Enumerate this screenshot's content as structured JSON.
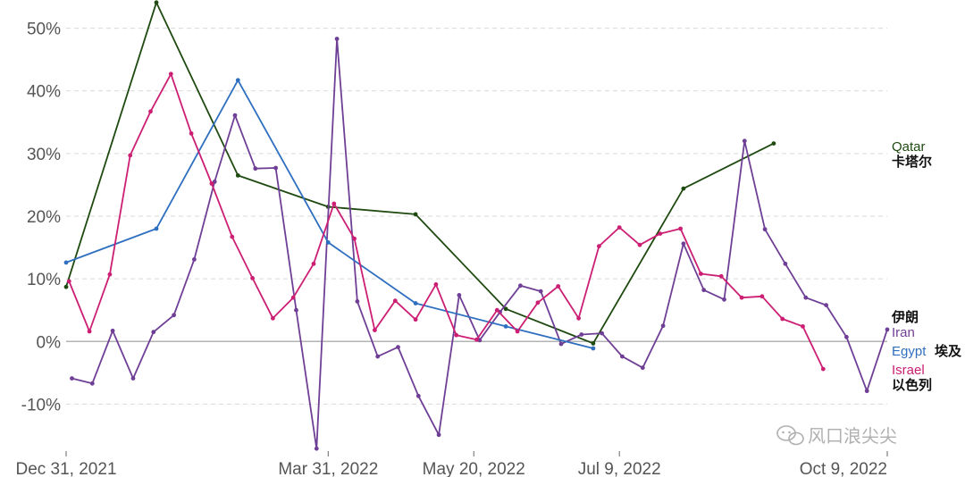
{
  "chart_data": {
    "type": "line",
    "title": "",
    "xlabel": "",
    "ylabel": "",
    "x_ticks": [
      {
        "label": "Dec 31, 2021",
        "date": "2021-12-31"
      },
      {
        "label": "Mar 31, 2022",
        "date": "2022-03-31"
      },
      {
        "label": "May 20, 2022",
        "date": "2022-05-20"
      },
      {
        "label": "Jul 9, 2022",
        "date": "2022-07-09"
      },
      {
        "label": "Oct 9, 2022",
        "date": "2022-10-09"
      }
    ],
    "y_ticks": [
      {
        "label": "-10%",
        "value": -10
      },
      {
        "label": "0%",
        "value": 0
      },
      {
        "label": "10%",
        "value": 10
      },
      {
        "label": "20%",
        "value": 20
      },
      {
        "label": "30%",
        "value": 30
      },
      {
        "label": "40%",
        "value": 40
      },
      {
        "label": "50%",
        "value": 50
      }
    ],
    "xlim": [
      "2021-12-31",
      "2022-10-09"
    ],
    "ylim": [
      -17.5,
      54.5
    ],
    "grid": "horizontal dashed",
    "zero_line": true,
    "series": [
      {
        "name": "Qatar",
        "label_cn": "卡塔尔",
        "color": "#1f4a10",
        "points": [
          [
            "2021-12-31",
            8.7
          ],
          [
            "2022-01-31",
            54.1
          ],
          [
            "2022-02-28",
            26.5
          ],
          [
            "2022-03-31",
            21.5
          ],
          [
            "2022-04-30",
            20.3
          ],
          [
            "2022-05-31",
            5.2
          ],
          [
            "2022-06-30",
            -0.3
          ],
          [
            "2022-07-31",
            24.4
          ],
          [
            "2022-08-31",
            31.6
          ]
        ]
      },
      {
        "name": "Iran",
        "label_cn": "伊朗",
        "color": "#6f3f96",
        "points": [
          [
            "2022-01-02",
            -5.9
          ],
          [
            "2022-01-09",
            -6.7
          ],
          [
            "2022-01-16",
            1.7
          ],
          [
            "2022-01-23",
            -5.9
          ],
          [
            "2022-01-30",
            1.5
          ],
          [
            "2022-02-06",
            4.2
          ],
          [
            "2022-02-13",
            13.1
          ],
          [
            "2022-02-20",
            25.5
          ],
          [
            "2022-02-27",
            36.1
          ],
          [
            "2022-03-06",
            27.6
          ],
          [
            "2022-03-13",
            27.7
          ],
          [
            "2022-03-20",
            5.0
          ],
          [
            "2022-03-27",
            -17.1
          ],
          [
            "2022-04-03",
            48.3
          ],
          [
            "2022-04-10",
            6.4
          ],
          [
            "2022-04-17",
            -2.4
          ],
          [
            "2022-04-24",
            -0.9
          ],
          [
            "2022-05-01",
            -8.7
          ],
          [
            "2022-05-08",
            -14.9
          ],
          [
            "2022-05-15",
            7.4
          ],
          [
            "2022-05-22",
            0.2
          ],
          [
            "2022-05-29",
            4.7
          ],
          [
            "2022-06-05",
            8.9
          ],
          [
            "2022-06-12",
            8.0
          ],
          [
            "2022-06-19",
            -0.4
          ],
          [
            "2022-06-26",
            1.1
          ],
          [
            "2022-07-03",
            1.3
          ],
          [
            "2022-07-10",
            -2.4
          ],
          [
            "2022-07-17",
            -4.2
          ],
          [
            "2022-07-24",
            2.5
          ],
          [
            "2022-07-31",
            15.6
          ],
          [
            "2022-08-07",
            8.2
          ],
          [
            "2022-08-14",
            6.7
          ],
          [
            "2022-08-21",
            32.0
          ],
          [
            "2022-08-28",
            17.9
          ],
          [
            "2022-09-04",
            12.4
          ],
          [
            "2022-09-11",
            7.0
          ],
          [
            "2022-09-18",
            5.8
          ],
          [
            "2022-09-25",
            0.7
          ],
          [
            "2022-10-02",
            -7.9
          ],
          [
            "2022-10-09",
            1.9
          ]
        ]
      },
      {
        "name": "Egypt",
        "label_cn": "埃及",
        "color": "#2e6fbf",
        "points": [
          [
            "2021-12-31",
            12.6
          ],
          [
            "2022-01-31",
            18.0
          ],
          [
            "2022-02-28",
            41.7
          ],
          [
            "2022-03-31",
            15.8
          ],
          [
            "2022-04-30",
            6.1
          ],
          [
            "2022-05-31",
            2.4
          ],
          [
            "2022-06-30",
            -1.1
          ]
        ]
      },
      {
        "name": "Israel",
        "label_cn": "以色列",
        "color": "#cc1f74",
        "points": [
          [
            "2022-01-01",
            9.6
          ],
          [
            "2022-01-08",
            1.6
          ],
          [
            "2022-01-15",
            10.7
          ],
          [
            "2022-01-22",
            29.7
          ],
          [
            "2022-01-29",
            36.7
          ],
          [
            "2022-02-05",
            42.7
          ],
          [
            "2022-02-12",
            33.2
          ],
          [
            "2022-02-19",
            25.2
          ],
          [
            "2022-02-26",
            16.7
          ],
          [
            "2022-03-05",
            10.1
          ],
          [
            "2022-03-12",
            3.7
          ],
          [
            "2022-03-19",
            7.0
          ],
          [
            "2022-03-26",
            12.4
          ],
          [
            "2022-04-02",
            22.0
          ],
          [
            "2022-04-09",
            16.4
          ],
          [
            "2022-04-16",
            1.8
          ],
          [
            "2022-04-23",
            6.5
          ],
          [
            "2022-04-30",
            3.5
          ],
          [
            "2022-05-07",
            9.1
          ],
          [
            "2022-05-14",
            1.0
          ],
          [
            "2022-05-21",
            0.3
          ],
          [
            "2022-05-28",
            5.0
          ],
          [
            "2022-06-04",
            1.6
          ],
          [
            "2022-06-11",
            6.2
          ],
          [
            "2022-06-18",
            8.8
          ],
          [
            "2022-06-25",
            3.7
          ],
          [
            "2022-07-02",
            15.2
          ],
          [
            "2022-07-09",
            18.2
          ],
          [
            "2022-07-16",
            15.4
          ],
          [
            "2022-07-23",
            17.2
          ],
          [
            "2022-07-30",
            18.0
          ],
          [
            "2022-08-06",
            10.8
          ],
          [
            "2022-08-13",
            10.4
          ],
          [
            "2022-08-20",
            7.0
          ],
          [
            "2022-08-27",
            7.2
          ],
          [
            "2022-09-03",
            3.6
          ],
          [
            "2022-09-10",
            2.4
          ],
          [
            "2022-09-17",
            -4.4
          ]
        ]
      }
    ],
    "legend": [
      {
        "name": "Qatar",
        "label_cn": "卡塔尔",
        "color": "#1f4a10"
      },
      {
        "name": "Iran",
        "label_cn": "伊朗",
        "color": "#6f3f96"
      },
      {
        "name": "Egypt",
        "label_cn": "埃及",
        "color": "#2e6fbf"
      },
      {
        "name": "Israel",
        "label_cn": "以色列",
        "color": "#cc1f74"
      }
    ]
  },
  "watermark": {
    "icon": "wechat-icon",
    "text": "风口浪尖尖"
  }
}
